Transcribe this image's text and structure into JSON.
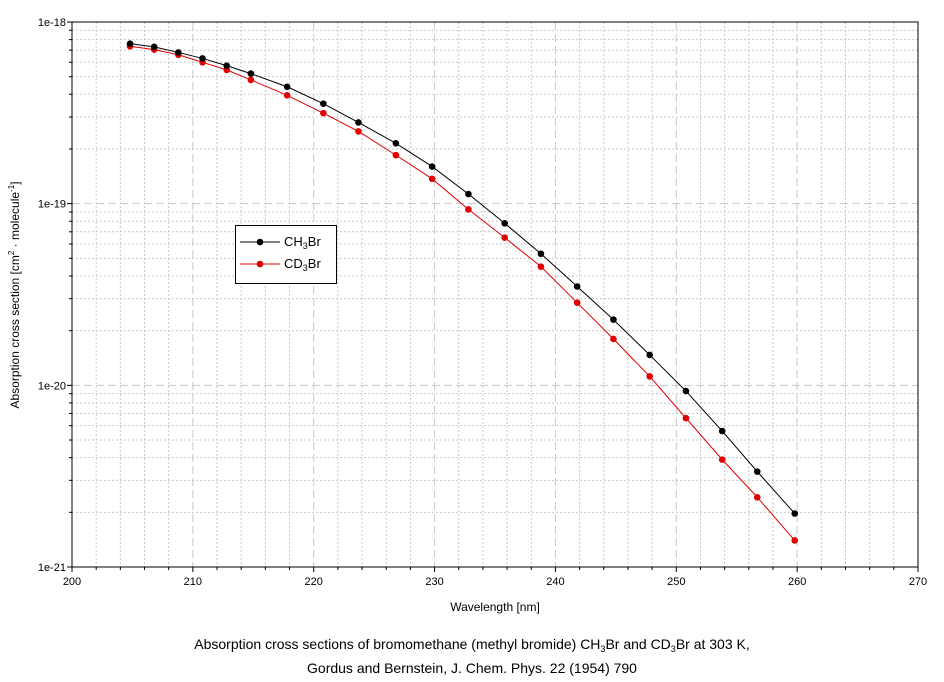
{
  "chart_data": {
    "type": "line",
    "xlabel": "Wavelength [nm]",
    "ylabel": {
      "main": "Absorption cross section [cm",
      "exp1": "2",
      "mid": " · molecule",
      "exp2": "-1",
      "end": "]"
    },
    "xlim": [
      200,
      270
    ],
    "ylim": [
      1e-21,
      1e-18
    ],
    "yscale": "log",
    "xticks": [
      200,
      210,
      220,
      230,
      240,
      250,
      260,
      270
    ],
    "xtick_labels": [
      "200",
      "210",
      "220",
      "230",
      "240",
      "250",
      "260",
      "270"
    ],
    "yticks": [
      1e-21,
      1e-20,
      1e-19,
      1e-18
    ],
    "ytick_labels": [
      "1e-21",
      "1e-20",
      "1e-19",
      "1e-18"
    ],
    "grid": true,
    "legend_position": "center-left",
    "series": [
      {
        "name": "CH3Br",
        "label_parts": [
          "CH",
          "3",
          "Br"
        ],
        "color": "#000000",
        "x": [
          204.8,
          206.8,
          208.8,
          210.8,
          212.8,
          214.8,
          217.8,
          220.8,
          223.7,
          226.8,
          229.8,
          232.8,
          235.8,
          238.8,
          241.8,
          244.8,
          247.8,
          250.8,
          253.8,
          256.7,
          259.8
        ],
        "y": [
          7.6e-19,
          7.3e-19,
          6.8e-19,
          6.3e-19,
          5.75e-19,
          5.2e-19,
          4.4e-19,
          3.55e-19,
          2.8e-19,
          2.15e-19,
          1.6e-19,
          1.13e-19,
          7.8e-20,
          5.3e-20,
          3.5e-20,
          2.3e-20,
          1.47e-20,
          9.3e-21,
          5.6e-21,
          3.35e-21,
          1.97e-21
        ]
      },
      {
        "name": "CD3Br",
        "label_parts": [
          "CD",
          "3",
          "Br"
        ],
        "color": "#e00000",
        "x": [
          204.8,
          206.8,
          208.8,
          210.8,
          212.8,
          214.8,
          217.8,
          220.8,
          223.7,
          226.8,
          229.8,
          232.8,
          235.8,
          238.8,
          241.8,
          244.8,
          247.8,
          250.8,
          253.8,
          256.7,
          259.8
        ],
        "y": [
          7.35e-19,
          7.05e-19,
          6.6e-19,
          6e-19,
          5.45e-19,
          4.8e-19,
          3.95e-19,
          3.15e-19,
          2.5e-19,
          1.85e-19,
          1.37e-19,
          9.3e-20,
          6.5e-20,
          4.5e-20,
          2.85e-20,
          1.8e-20,
          1.12e-20,
          6.6e-21,
          3.9e-21,
          2.42e-21,
          1.4e-21
        ]
      }
    ]
  },
  "caption": {
    "line1_a": "Absorption cross sections of bromomethane (methyl bromide) CH",
    "line1_sub1": "3",
    "line1_b": "Br and CD",
    "line1_sub2": "3",
    "line1_c": "Br at 303 K,",
    "line2": "Gordus and Bernstein, J. Chem. Phys. 22 (1954) 790"
  }
}
